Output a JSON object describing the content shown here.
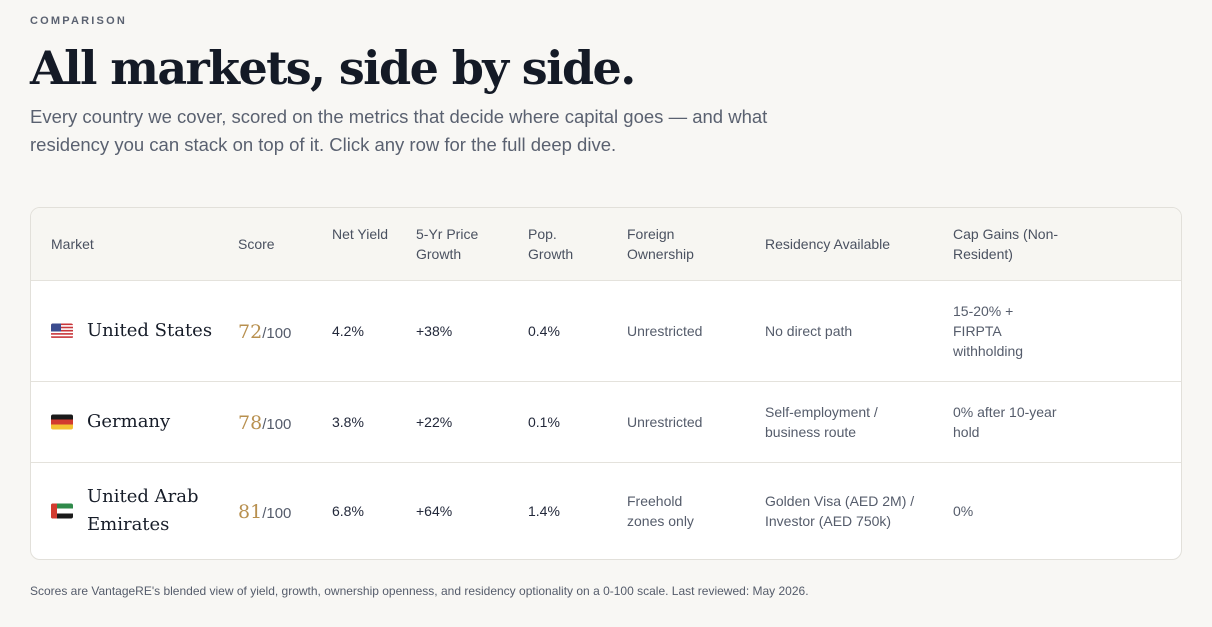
{
  "eyebrow": "COMPARISON",
  "title": "All markets, side by side.",
  "lede": "Every country we cover, scored on the metrics that decide where capital goes — and what residency you can stack on top of it. Click any row for the full deep dive.",
  "colors": {
    "accent_gold": "#b8904f",
    "ink": "#141a26",
    "muted": "#555c6b",
    "background": "#f8f7f4"
  },
  "table": {
    "headers": {
      "market": "Market",
      "score": "Score",
      "yield": "Net Yield",
      "growth": "5-Yr Price Growth",
      "pop": "Pop. Growth",
      "ownership": "Foreign Ownership",
      "residency": "Residency Available",
      "capgains": "Cap Gains (Non-Resident)"
    },
    "rows": [
      {
        "flag": "us-flag-icon",
        "market": "United States",
        "score": "72",
        "score_max": "/100",
        "yield": "4.2%",
        "growth": "+38%",
        "pop": "0.4%",
        "ownership": "Unrestricted",
        "residency": "No direct path",
        "capgains": "15-20% + FIRPTA withholding"
      },
      {
        "flag": "germany-flag-icon",
        "market": "Germany",
        "score": "78",
        "score_max": "/100",
        "yield": "3.8%",
        "growth": "+22%",
        "pop": "0.1%",
        "ownership": "Unrestricted",
        "residency": "Self-employment / business route",
        "capgains": "0% after 10-year hold"
      },
      {
        "flag": "uae-flag-icon",
        "market": "United Arab Emirates",
        "score": "81",
        "score_max": "/100",
        "yield": "6.8%",
        "growth": "+64%",
        "pop": "1.4%",
        "ownership": "Freehold zones only",
        "residency": "Golden Visa (AED 2M) / Investor (AED 750k)",
        "capgains": "0%"
      }
    ]
  },
  "footnote": "Scores are VantageRE's blended view of yield, growth, ownership openness, and residency optionality on a 0-100 scale. Last reviewed: May 2026."
}
